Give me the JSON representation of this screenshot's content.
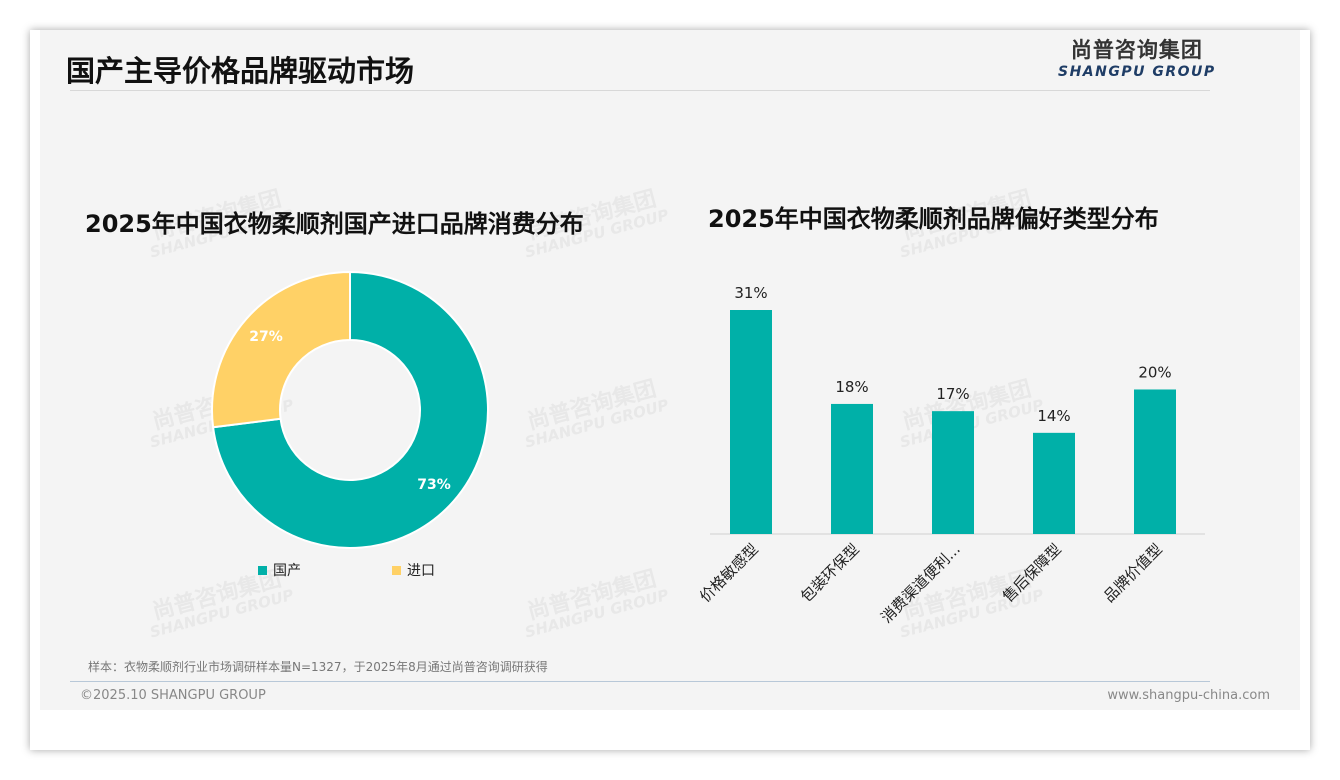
{
  "header": {
    "title": "国产主导价格品牌驱动市场",
    "logo_cn": "尚普咨询集团",
    "logo_en": "SHANGPU GROUP"
  },
  "footer": {
    "note": "样本：衣物柔顺剂行业市场调研样本量N=1327，于2025年8月通过尚普咨询调研获得",
    "copyright": "©2025.10 SHANGPU GROUP",
    "url": "www.shangpu-china.com"
  },
  "colors": {
    "teal": "#00b0a8",
    "yellow": "#ffd166"
  },
  "chart_data": [
    {
      "type": "pie",
      "title": "2025年中国衣物柔顺剂国产进口品牌消费分布",
      "categories": [
        "国产",
        "进口"
      ],
      "values": [
        73,
        27
      ],
      "labels": [
        "73%",
        "27%"
      ],
      "legend": "bottom"
    },
    {
      "type": "bar",
      "title": "2025年中国衣物柔顺剂品牌偏好类型分布",
      "categories": [
        "价格敏感型",
        "包装环保型",
        "消费渠道便利...",
        "售后保障型",
        "品牌价值型"
      ],
      "values": [
        31,
        18,
        17,
        14,
        20
      ],
      "labels": [
        "31%",
        "18%",
        "17%",
        "14%",
        "20%"
      ],
      "ylim": [
        0,
        31
      ]
    }
  ]
}
